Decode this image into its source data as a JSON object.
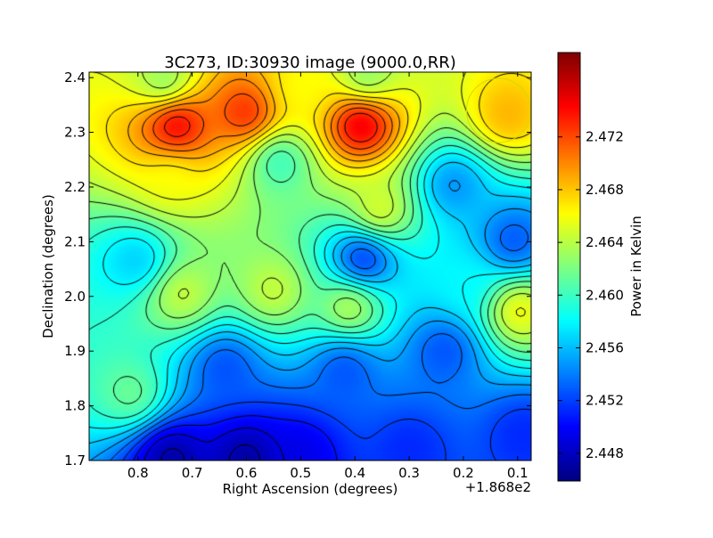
{
  "chart_data": {
    "type": "heatmap",
    "title": "3C273, ID:30930 image (9000.0,RR)",
    "xlabel": "Right Ascension (degrees)",
    "ylabel": "Declination (degrees)",
    "x_offset_label": "+1.868e2",
    "x_tick_labels": [
      "0.8",
      "0.7",
      "0.6",
      "0.5",
      "0.4",
      "0.3",
      "0.2",
      "0.1"
    ],
    "x_ticks": [
      0.8,
      0.7,
      0.6,
      0.5,
      0.4,
      0.3,
      0.2,
      0.1
    ],
    "xlim": [
      0.89,
      0.075
    ],
    "y_tick_labels": [
      "1.7",
      "1.8",
      "1.9",
      "2.0",
      "2.1",
      "2.2",
      "2.3",
      "2.4"
    ],
    "y_ticks": [
      1.7,
      1.8,
      1.9,
      2.0,
      2.1,
      2.2,
      2.3,
      2.4
    ],
    "ylim": [
      1.7,
      2.41
    ],
    "colorbar": {
      "label": "Power in Kelvin",
      "range": [
        2.4459,
        2.4784
      ],
      "tick_labels": [
        "2.448",
        "2.452",
        "2.456",
        "2.460",
        "2.464",
        "2.468",
        "2.472"
      ],
      "ticks": [
        2.448,
        2.452,
        2.456,
        2.46,
        2.464,
        2.468,
        2.472
      ],
      "colormap": "jet"
    },
    "marker": {
      "type": "circle",
      "ra": 0.135,
      "dec": 2.34,
      "color": "#d8d800"
    },
    "features": [
      {
        "ra": 0.73,
        "dec": 2.315,
        "value": 2.476
      },
      {
        "ra": 0.6,
        "dec": 2.335,
        "value": 2.474
      },
      {
        "ra": 0.39,
        "dec": 2.315,
        "value": 2.477
      },
      {
        "ra": 0.5,
        "dec": 2.38,
        "value": 2.466
      },
      {
        "ra": 0.12,
        "dec": 2.33,
        "value": 2.469
      },
      {
        "ra": 0.75,
        "dec": 2.39,
        "value": 2.462
      },
      {
        "ra": 0.38,
        "dec": 2.4,
        "value": 2.462
      },
      {
        "ra": 0.74,
        "dec": 2.215,
        "value": 2.466
      },
      {
        "ra": 0.54,
        "dec": 2.25,
        "value": 2.459
      },
      {
        "ra": 0.355,
        "dec": 2.155,
        "value": 2.466
      },
      {
        "ra": 0.22,
        "dec": 2.205,
        "value": 2.454
      },
      {
        "ra": 0.385,
        "dec": 2.07,
        "value": 2.45
      },
      {
        "ra": 0.11,
        "dec": 2.1,
        "value": 2.452
      },
      {
        "ra": 0.8,
        "dec": 2.065,
        "value": 2.456
      },
      {
        "ra": 0.72,
        "dec": 2.005,
        "value": 2.465
      },
      {
        "ra": 0.55,
        "dec": 2.01,
        "value": 2.465
      },
      {
        "ra": 0.41,
        "dec": 1.98,
        "value": 2.465
      },
      {
        "ra": 0.1,
        "dec": 1.975,
        "value": 2.467
      },
      {
        "ra": 0.2,
        "dec": 2.025,
        "value": 2.458
      },
      {
        "ra": 0.235,
        "dec": 1.905,
        "value": 2.452
      },
      {
        "ra": 0.64,
        "dec": 1.875,
        "value": 2.452
      },
      {
        "ra": 0.42,
        "dec": 1.87,
        "value": 2.452
      },
      {
        "ra": 0.81,
        "dec": 1.82,
        "value": 2.462
      },
      {
        "ra": 0.74,
        "dec": 1.71,
        "value": 2.4465
      },
      {
        "ra": 0.6,
        "dec": 1.705,
        "value": 2.4465
      },
      {
        "ra": 0.5,
        "dec": 1.715,
        "value": 2.449
      },
      {
        "ra": 0.3,
        "dec": 1.725,
        "value": 2.451
      },
      {
        "ra": 0.09,
        "dec": 1.75,
        "value": 2.451
      }
    ]
  }
}
